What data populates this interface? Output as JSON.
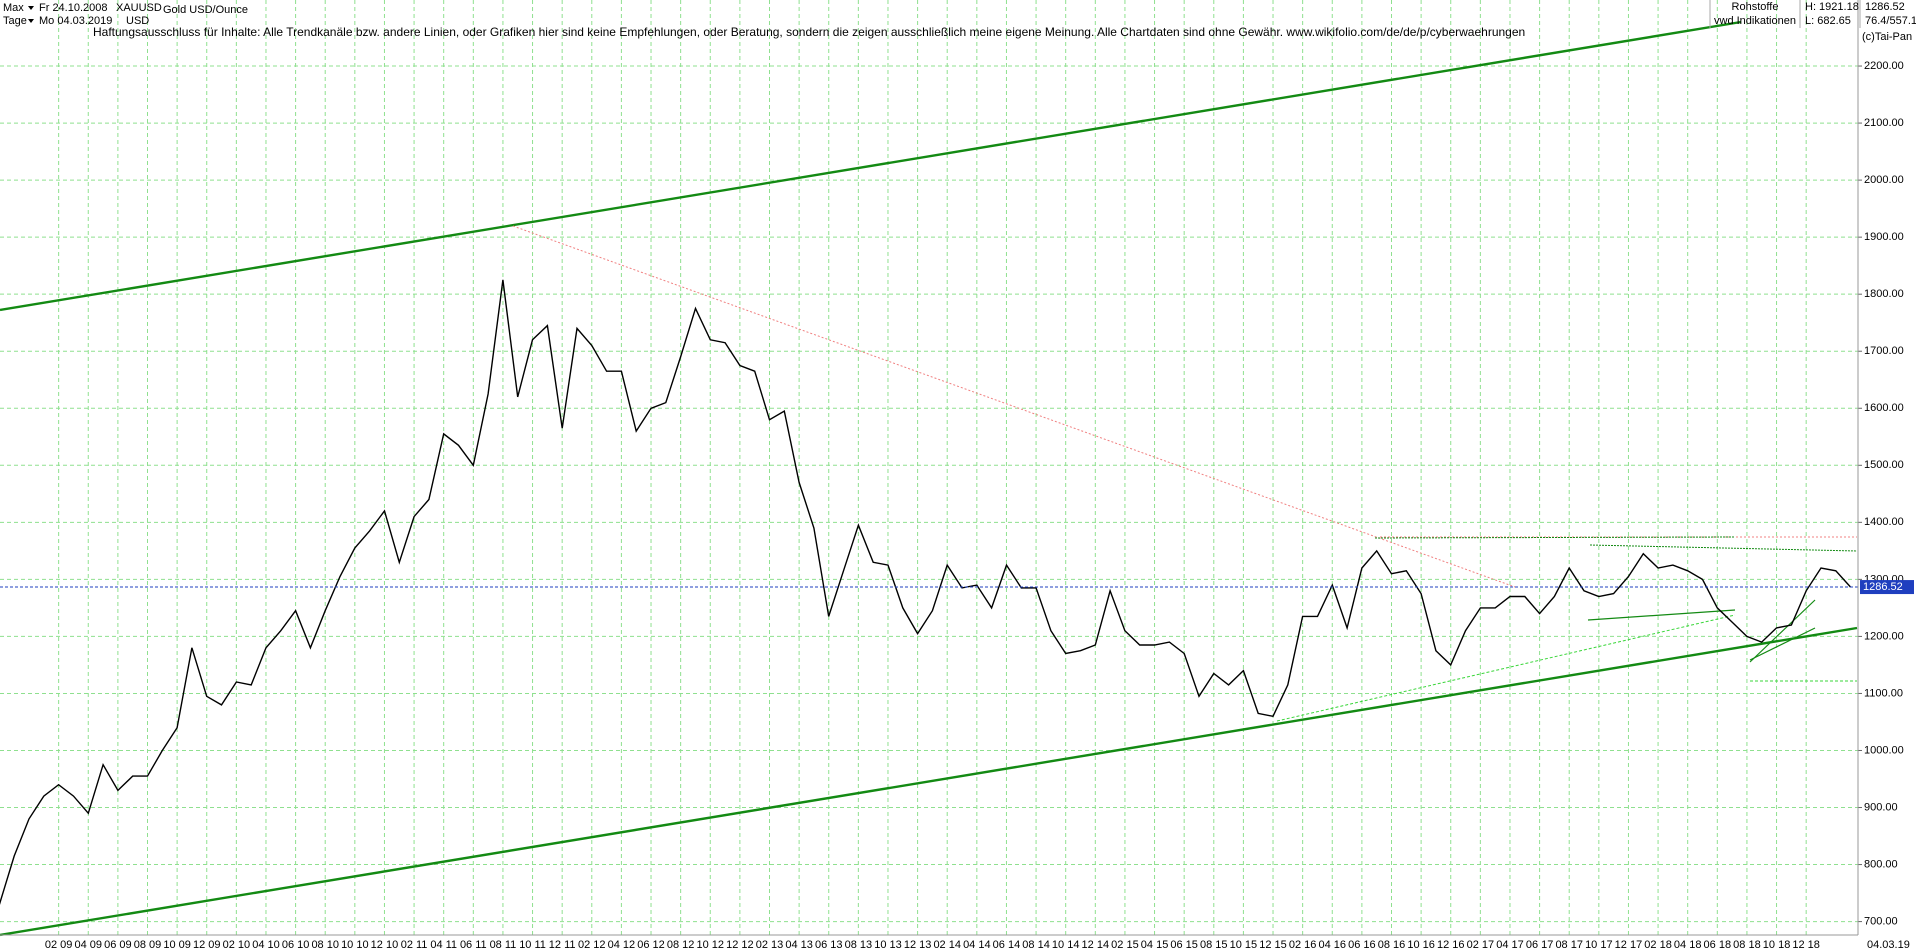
{
  "header": {
    "range": "Max",
    "start": "Fr 24.10.2008",
    "symbol": "XAUUSD",
    "name": "Gold USD/Ounce",
    "period": "Tage",
    "end": "Mo 04.03.2019",
    "currency": "USD",
    "disclaimer": "Haftungsausschluss für Inhalte: Alle Trendkanäle bzw. andere Linien, oder Grafiken hier sind keine Empfehlungen, oder Beratung, sondern die zeigen ausschließlich meine eigene Meinung. Alle Chartdaten sind ohne Gewähr.  www.wikifolio.com/de/de/p/cyberwaehrungen",
    "group": "Rohstoffe",
    "high": "H: 1921.18",
    "source": "vwd Indikationen",
    "low": "L: 682.65",
    "ratio": "76.4/557.1",
    "copyright": "(c)Tai-Pan",
    "last_date": "04.03.19"
  },
  "chart_data": {
    "type": "line",
    "title": "Gold USD/Ounce",
    "categories": [
      null,
      null,
      null,
      null,
      "02 09",
      null,
      "04 09",
      null,
      "06 09",
      null,
      "08 09",
      null,
      "10 09",
      null,
      "12 09",
      null,
      "02 10",
      null,
      "04 10",
      null,
      "06 10",
      null,
      "08 10",
      null,
      "10 10",
      null,
      "12 10",
      null,
      "02 11",
      null,
      "04 11",
      null,
      "06 11",
      null,
      "08 11",
      null,
      "10 11",
      null,
      "12 11",
      null,
      "02 12",
      null,
      "04 12",
      null,
      "06 12",
      null,
      "08 12",
      null,
      "10 12",
      null,
      "12 12",
      null,
      "02 13",
      null,
      "04 13",
      null,
      "06 13",
      null,
      "08 13",
      null,
      "10 13",
      null,
      "12 13",
      null,
      "02 14",
      null,
      "04 14",
      null,
      "06 14",
      null,
      "08 14",
      null,
      "10 14",
      null,
      "12 14",
      null,
      "02 15",
      null,
      "04 15",
      null,
      "06 15",
      null,
      "08 15",
      null,
      "10 15",
      null,
      "12 15",
      null,
      "02 16",
      null,
      "04 16",
      null,
      "06 16",
      null,
      "08 16",
      null,
      "10 16",
      null,
      "12 16",
      null,
      "02 17",
      null,
      "04 17",
      null,
      "06 17",
      null,
      "08 17",
      null,
      "10 17",
      null,
      "12 17",
      null,
      "02 18",
      null,
      "04 18",
      null,
      "06 18",
      null,
      "08 18",
      null,
      "10 18",
      null,
      "12 18",
      null,
      null,
      null
    ],
    "series": [
      {
        "name": "XAUUSD",
        "color": "#000000",
        "values": [
          730,
          815,
          880,
          920,
          940,
          920,
          890,
          975,
          930,
          955,
          955,
          1000,
          1040,
          1180,
          1095,
          1080,
          1120,
          1115,
          1180,
          1210,
          1245,
          1180,
          1245,
          1305,
          1355,
          1385,
          1420,
          1330,
          1410,
          1440,
          1555,
          1535,
          1500,
          1625,
          1825,
          1620,
          1720,
          1745,
          1565,
          1740,
          1710,
          1665,
          1665,
          1560,
          1600,
          1610,
          1690,
          1775,
          1720,
          1715,
          1675,
          1665,
          1580,
          1595,
          1470,
          1390,
          1235,
          1315,
          1395,
          1330,
          1325,
          1250,
          1205,
          1245,
          1325,
          1285,
          1290,
          1250,
          1325,
          1285,
          1285,
          1210,
          1170,
          1175,
          1185,
          1280,
          1210,
          1185,
          1185,
          1190,
          1170,
          1095,
          1135,
          1115,
          1140,
          1065,
          1060,
          1115,
          1235,
          1235,
          1290,
          1215,
          1320,
          1350,
          1310,
          1315,
          1275,
          1175,
          1150,
          1210,
          1250,
          1250,
          1270,
          1270,
          1240,
          1270,
          1320,
          1280,
          1270,
          1275,
          1305,
          1345,
          1320,
          1325,
          1315,
          1300,
          1250,
          1225,
          1200,
          1190,
          1215,
          1220,
          1280,
          1320,
          1315,
          1286.52
        ]
      }
    ],
    "ylim": [
      680,
      2300
    ],
    "yticks": [
      {
        "value": 700,
        "label": "700.00"
      },
      {
        "value": 800,
        "label": "800.00"
      },
      {
        "value": 900,
        "label": "900.00"
      },
      {
        "value": 1000,
        "label": "1000.00"
      },
      {
        "value": 1100,
        "label": "1100.00"
      },
      {
        "value": 1200,
        "label": "1200.00"
      },
      {
        "value": 1300,
        "label": "1300.00"
      },
      {
        "value": 1400,
        "label": "1400.00"
      },
      {
        "value": 1500,
        "label": "1500.00"
      },
      {
        "value": 1600,
        "label": "1600.00"
      },
      {
        "value": 1700,
        "label": "1700.00"
      },
      {
        "value": 1800,
        "label": "1800.00"
      },
      {
        "value": 1900,
        "label": "1900.00"
      },
      {
        "value": 2000,
        "label": "2000.00"
      },
      {
        "value": 2100,
        "label": "2100.00"
      },
      {
        "value": 2200,
        "label": "2200.00"
      }
    ],
    "grid": true,
    "grid_color": "#8fe08f",
    "price_line_color": "#1f3fbf"
  }
}
